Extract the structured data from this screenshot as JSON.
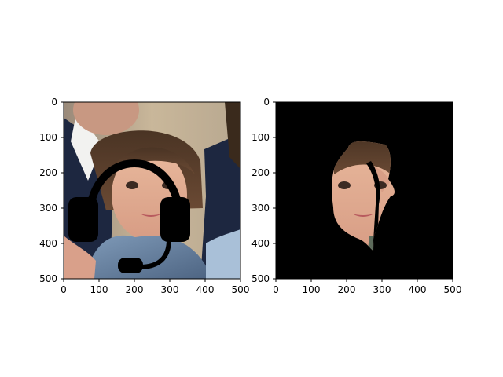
{
  "colors": {
    "background": "#ffffff",
    "axis": "#000000",
    "mask_fill": "#000000",
    "headset": "#000000"
  },
  "panels": [
    {
      "name": "left-panel",
      "content": "photo of a young girl with a black headset icon overlaid",
      "x_ticks": [
        "0",
        "100",
        "200",
        "300",
        "400",
        "500"
      ],
      "y_ticks": [
        "0",
        "100",
        "200",
        "300",
        "400",
        "500"
      ],
      "x_range": [
        0,
        500
      ],
      "y_range": [
        0,
        500
      ]
    },
    {
      "name": "right-panel",
      "content": "same photo masked: only face region visible, rest black",
      "x_ticks": [
        "0",
        "100",
        "200",
        "300",
        "400",
        "500"
      ],
      "y_ticks": [
        "0",
        "100",
        "200",
        "300",
        "400",
        "500"
      ],
      "x_range": [
        0,
        500
      ],
      "y_range": [
        0,
        500
      ]
    }
  ]
}
